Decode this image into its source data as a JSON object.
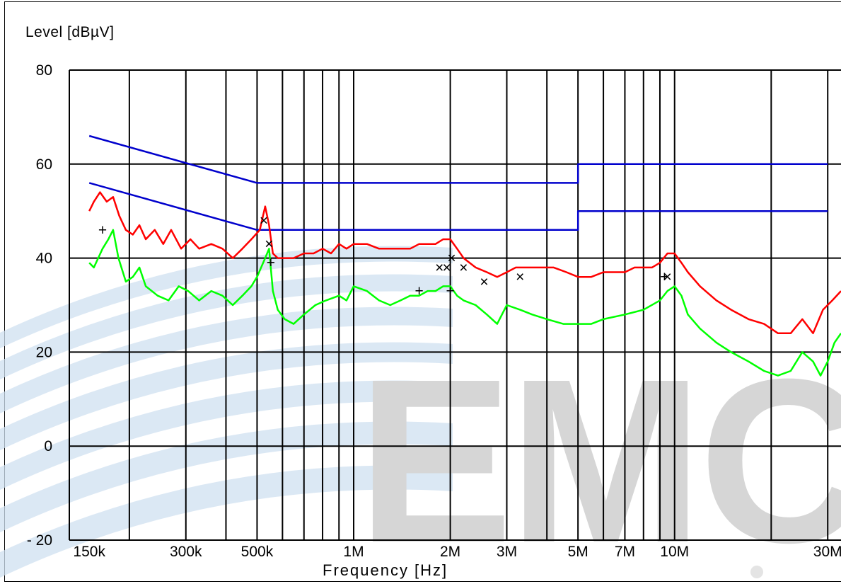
{
  "chart_data": {
    "type": "line",
    "title": "",
    "xlabel": "Frequency [Hz]",
    "ylabel": "Level [dBµV]",
    "x_scale": "log",
    "x_unit": "Hz",
    "xlim": [
      130000,
      33000000
    ],
    "ylim": [
      -20,
      80
    ],
    "y_ticks": [
      -20,
      0,
      20,
      40,
      60,
      80
    ],
    "x_tick_labels": [
      {
        "value": 150000,
        "label": "150k"
      },
      {
        "value": 300000,
        "label": "300k"
      },
      {
        "value": 500000,
        "label": "500k"
      },
      {
        "value": 1000000,
        "label": "1M"
      },
      {
        "value": 2000000,
        "label": "2M"
      },
      {
        "value": 3000000,
        "label": "3M"
      },
      {
        "value": 5000000,
        "label": "5M"
      },
      {
        "value": 7000000,
        "label": "7M"
      },
      {
        "value": 10000000,
        "label": "10M"
      },
      {
        "value": 30000000,
        "label": "30M"
      }
    ],
    "grid": true,
    "watermark": "EMC",
    "series": [
      {
        "color": "#0000cc",
        "kind": "limit",
        "points": [
          [
            150000,
            66
          ],
          [
            500000,
            56
          ],
          [
            5000000,
            56
          ],
          [
            5000000,
            60
          ],
          [
            30000000,
            60
          ]
        ]
      },
      {
        "color": "#0000cc",
        "kind": "limit",
        "points": [
          [
            150000,
            56
          ],
          [
            500000,
            46
          ],
          [
            5000000,
            46
          ],
          [
            5000000,
            50
          ],
          [
            30000000,
            50
          ]
        ]
      },
      {
        "color": "#ff0000",
        "kind": "peak",
        "points": [
          [
            150000,
            50
          ],
          [
            155000,
            52
          ],
          [
            162000,
            54
          ],
          [
            170000,
            52
          ],
          [
            178000,
            53
          ],
          [
            186000,
            49
          ],
          [
            195000,
            46
          ],
          [
            205000,
            45
          ],
          [
            215000,
            47
          ],
          [
            225000,
            44
          ],
          [
            240000,
            46
          ],
          [
            255000,
            43
          ],
          [
            270000,
            46
          ],
          [
            290000,
            42
          ],
          [
            310000,
            44
          ],
          [
            330000,
            42
          ],
          [
            360000,
            43
          ],
          [
            390000,
            42
          ],
          [
            420000,
            40
          ],
          [
            450000,
            42
          ],
          [
            480000,
            44
          ],
          [
            510000,
            46
          ],
          [
            530000,
            51
          ],
          [
            545000,
            47
          ],
          [
            560000,
            41
          ],
          [
            580000,
            40
          ],
          [
            610000,
            40
          ],
          [
            650000,
            40
          ],
          [
            700000,
            41
          ],
          [
            750000,
            41
          ],
          [
            800000,
            42
          ],
          [
            850000,
            41
          ],
          [
            900000,
            43
          ],
          [
            950000,
            42
          ],
          [
            1000000,
            43
          ],
          [
            1100000,
            43
          ],
          [
            1200000,
            42
          ],
          [
            1300000,
            42
          ],
          [
            1400000,
            42
          ],
          [
            1500000,
            42
          ],
          [
            1600000,
            43
          ],
          [
            1700000,
            43
          ],
          [
            1800000,
            43
          ],
          [
            1900000,
            44
          ],
          [
            2000000,
            44
          ],
          [
            2100000,
            42
          ],
          [
            2200000,
            40
          ],
          [
            2400000,
            38
          ],
          [
            2600000,
            37
          ],
          [
            2800000,
            36
          ],
          [
            3000000,
            37
          ],
          [
            3200000,
            38
          ],
          [
            3500000,
            38
          ],
          [
            3800000,
            38
          ],
          [
            4200000,
            38
          ],
          [
            4600000,
            37
          ],
          [
            5000000,
            36
          ],
          [
            5500000,
            36
          ],
          [
            6000000,
            37
          ],
          [
            6500000,
            37
          ],
          [
            7000000,
            37
          ],
          [
            7500000,
            38
          ],
          [
            8000000,
            38
          ],
          [
            8500000,
            38
          ],
          [
            9000000,
            39
          ],
          [
            9500000,
            41
          ],
          [
            10000000,
            41
          ],
          [
            10500000,
            39
          ],
          [
            11000000,
            37
          ],
          [
            12000000,
            34
          ],
          [
            13500000,
            31
          ],
          [
            15000000,
            29
          ],
          [
            17000000,
            27
          ],
          [
            19000000,
            26
          ],
          [
            21000000,
            24
          ],
          [
            23000000,
            24
          ],
          [
            25000000,
            27
          ],
          [
            27000000,
            24
          ],
          [
            29000000,
            29
          ],
          [
            31000000,
            31
          ],
          [
            33000000,
            33
          ]
        ]
      },
      {
        "color": "#00ff00",
        "kind": "average",
        "points": [
          [
            150000,
            39
          ],
          [
            155000,
            38
          ],
          [
            165000,
            42
          ],
          [
            172000,
            44
          ],
          [
            178000,
            46
          ],
          [
            185000,
            40
          ],
          [
            195000,
            35
          ],
          [
            205000,
            36
          ],
          [
            215000,
            38
          ],
          [
            225000,
            34
          ],
          [
            245000,
            32
          ],
          [
            265000,
            31
          ],
          [
            285000,
            34
          ],
          [
            305000,
            33
          ],
          [
            330000,
            31
          ],
          [
            360000,
            33
          ],
          [
            390000,
            32
          ],
          [
            420000,
            30
          ],
          [
            450000,
            32
          ],
          [
            480000,
            34
          ],
          [
            500000,
            36
          ],
          [
            530000,
            40
          ],
          [
            545000,
            42
          ],
          [
            560000,
            33
          ],
          [
            580000,
            29
          ],
          [
            610000,
            27
          ],
          [
            650000,
            26
          ],
          [
            700000,
            28
          ],
          [
            760000,
            30
          ],
          [
            820000,
            31
          ],
          [
            900000,
            32
          ],
          [
            950000,
            31
          ],
          [
            1000000,
            34
          ],
          [
            1100000,
            33
          ],
          [
            1200000,
            31
          ],
          [
            1300000,
            30
          ],
          [
            1400000,
            31
          ],
          [
            1500000,
            32
          ],
          [
            1600000,
            32
          ],
          [
            1700000,
            33
          ],
          [
            1800000,
            33
          ],
          [
            1900000,
            34
          ],
          [
            2000000,
            34
          ],
          [
            2100000,
            32
          ],
          [
            2200000,
            31
          ],
          [
            2400000,
            30
          ],
          [
            2600000,
            28
          ],
          [
            2800000,
            26
          ],
          [
            3000000,
            30
          ],
          [
            3300000,
            29
          ],
          [
            3600000,
            28
          ],
          [
            4000000,
            27
          ],
          [
            4500000,
            26
          ],
          [
            5000000,
            26
          ],
          [
            5500000,
            26
          ],
          [
            6000000,
            27
          ],
          [
            7000000,
            28
          ],
          [
            8000000,
            29
          ],
          [
            9000000,
            31
          ],
          [
            9500000,
            33
          ],
          [
            10000000,
            34
          ],
          [
            10500000,
            32
          ],
          [
            11000000,
            28
          ],
          [
            12000000,
            25
          ],
          [
            13500000,
            22
          ],
          [
            15000000,
            20
          ],
          [
            17000000,
            18
          ],
          [
            19000000,
            16
          ],
          [
            21000000,
            15
          ],
          [
            23000000,
            16
          ],
          [
            25000000,
            20
          ],
          [
            27000000,
            18
          ],
          [
            28500000,
            15
          ],
          [
            30000000,
            18
          ],
          [
            31500000,
            22
          ],
          [
            33000000,
            24
          ]
        ]
      }
    ],
    "peak_markers": [
      {
        "symbol": "+",
        "x": 165000,
        "y": 46
      },
      {
        "symbol": "×",
        "x": 525000,
        "y": 48
      },
      {
        "symbol": "×",
        "x": 545000,
        "y": 43
      },
      {
        "symbol": "+",
        "x": 552000,
        "y": 39
      },
      {
        "symbol": "+",
        "x": 1600000,
        "y": 33
      },
      {
        "symbol": "×",
        "x": 1850000,
        "y": 38
      },
      {
        "symbol": "×",
        "x": 1950000,
        "y": 38
      },
      {
        "symbol": "×",
        "x": 2020000,
        "y": 40
      },
      {
        "symbol": "+",
        "x": 2000000,
        "y": 33
      },
      {
        "symbol": "×",
        "x": 2200000,
        "y": 38
      },
      {
        "symbol": "×",
        "x": 2550000,
        "y": 35
      },
      {
        "symbol": "×",
        "x": 3300000,
        "y": 36
      },
      {
        "symbol": "+",
        "x": 9300000,
        "y": 36
      },
      {
        "symbol": "×",
        "x": 9500000,
        "y": 36
      }
    ],
    "marker_color": "#ff33ff"
  }
}
